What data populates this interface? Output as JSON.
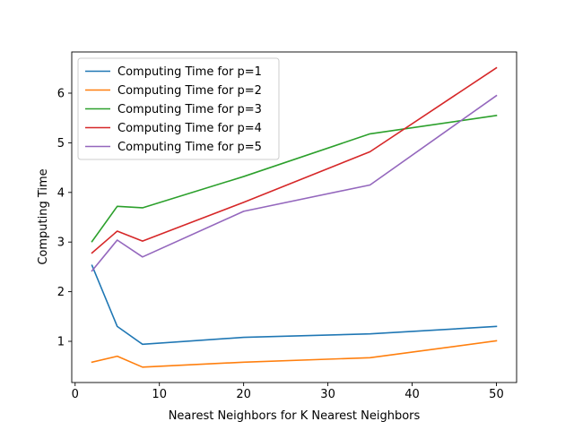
{
  "chart_data": {
    "type": "line",
    "title": "",
    "xlabel": "Nearest Neighbors for K Nearest Neighbors",
    "ylabel": "Computing Time",
    "xlim": [
      -0.4,
      52.4
    ],
    "ylim": [
      0.17,
      6.83
    ],
    "xticks": [
      0,
      10,
      20,
      30,
      40,
      50
    ],
    "yticks": [
      1,
      2,
      3,
      4,
      5,
      6
    ],
    "x": [
      2,
      5,
      8,
      20,
      35,
      50
    ],
    "grid": false,
    "legend_position": "top-left",
    "series": [
      {
        "name": "Computing Time for p=1",
        "color": "#1f77b4",
        "values": [
          2.53,
          1.3,
          0.94,
          1.08,
          1.15,
          1.3
        ]
      },
      {
        "name": "Computing Time for p=2",
        "color": "#ff7f0e",
        "values": [
          0.58,
          0.7,
          0.48,
          0.58,
          0.67,
          1.01
        ]
      },
      {
        "name": "Computing Time for p=3",
        "color": "#2ca02c",
        "values": [
          3.01,
          3.72,
          3.69,
          4.32,
          5.18,
          5.55
        ]
      },
      {
        "name": "Computing Time for p=4",
        "color": "#d62728",
        "values": [
          2.78,
          3.22,
          3.02,
          3.8,
          4.82,
          6.51
        ]
      },
      {
        "name": "Computing Time for p=5",
        "color": "#9467bd",
        "values": [
          2.42,
          3.04,
          2.7,
          3.62,
          4.15,
          5.95
        ]
      }
    ]
  }
}
